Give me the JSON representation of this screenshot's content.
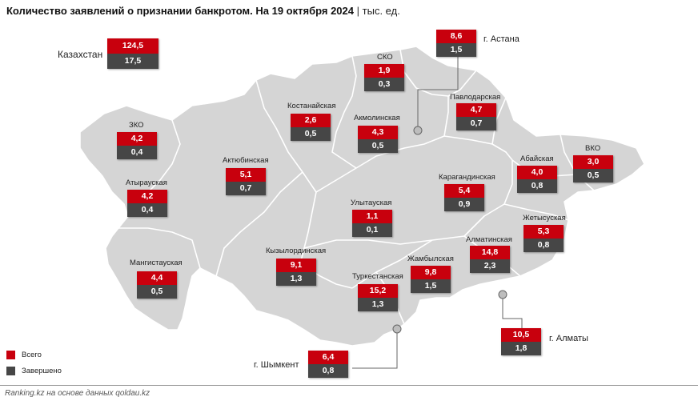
{
  "title": {
    "main": "Количество заявлений о признании банкротом. На 19 октября 2024",
    "separator": "|",
    "unit": "тыс. ед."
  },
  "colors": {
    "total": "#c8000d",
    "completed": "#464646",
    "land": "#d5d5d5",
    "border": "#ffffff"
  },
  "national": {
    "label": "Казахстан",
    "total": "124,5",
    "completed": "17,5"
  },
  "regions": {
    "sko": {
      "label": "СКО",
      "total": "1,9",
      "completed": "0,3"
    },
    "kostanay": {
      "label": "Костанайская",
      "total": "2,6",
      "completed": "0,5"
    },
    "akmola": {
      "label": "Акмолинская",
      "total": "4,3",
      "completed": "0,5"
    },
    "pavlodar": {
      "label": "Павлодарская",
      "total": "4,7",
      "completed": "0,7"
    },
    "zko": {
      "label": "ЗКО",
      "total": "4,2",
      "completed": "0,4"
    },
    "aktobe": {
      "label": "Актюбинская",
      "total": "5,1",
      "completed": "0,7"
    },
    "abay": {
      "label": "Абайская",
      "total": "4,0",
      "completed": "0,8"
    },
    "vko": {
      "label": "ВКО",
      "total": "3,0",
      "completed": "0,5"
    },
    "atyrau": {
      "label": "Атырауская",
      "total": "4,2",
      "completed": "0,4"
    },
    "karaganda": {
      "label": "Карагандинская",
      "total": "5,4",
      "completed": "0,9"
    },
    "ulytau": {
      "label": "Улытауская",
      "total": "1,1",
      "completed": "0,1"
    },
    "zhetysu": {
      "label": "Жетысуская",
      "total": "5,3",
      "completed": "0,8"
    },
    "almaty_reg": {
      "label": "Алматинская",
      "total": "14,8",
      "completed": "2,3"
    },
    "mangystau": {
      "label": "Мангистауская",
      "total": "4,4",
      "completed": "0,5"
    },
    "kyzylorda": {
      "label": "Кызылординская",
      "total": "9,1",
      "completed": "1,3"
    },
    "zhambyl": {
      "label": "Жамбылская",
      "total": "9,8",
      "completed": "1,5"
    },
    "turkestan": {
      "label": "Туркестанская",
      "total": "15,2",
      "completed": "1,3"
    }
  },
  "cities": {
    "astana": {
      "label": "г. Астана",
      "total": "8,6",
      "completed": "1,5"
    },
    "almaty": {
      "label": "г. Алматы",
      "total": "10,5",
      "completed": "1,8"
    },
    "shymkent": {
      "label": "г. Шымкент",
      "total": "6,4",
      "completed": "0,8"
    }
  },
  "legend": {
    "total": "Всего",
    "completed": "Завершено"
  },
  "source": "Ranking.kz на основе данных qoldau.kz"
}
